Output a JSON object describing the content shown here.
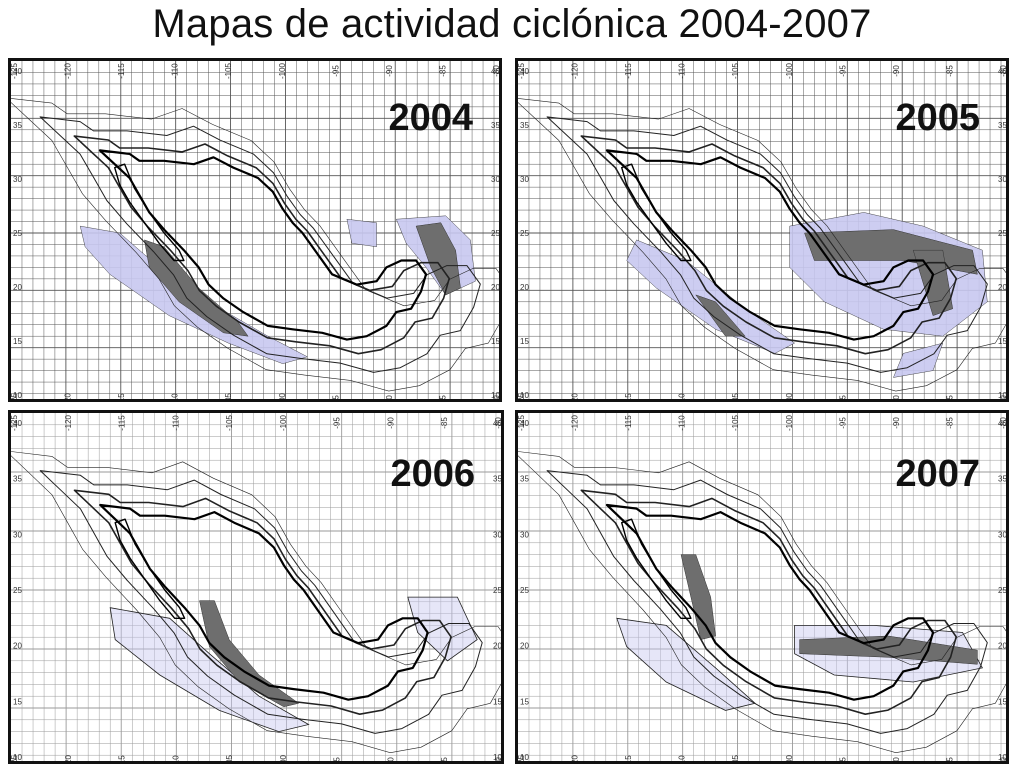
{
  "title": "Mapas de actividad ciclónica 2004-2007",
  "axes": {
    "lon_ticks": [
      "-125",
      "-120",
      "-115",
      "-110",
      "-105",
      "-100",
      "-95",
      "-90",
      "-85",
      "-80"
    ],
    "lat_ticks": [
      "40",
      "35",
      "30",
      "25",
      "20",
      "15",
      "10"
    ]
  },
  "colors": {
    "frame": "#111111",
    "grid_dark": "#555555",
    "grid_light": "#9a9a9a",
    "zone_fill": "#c8c8f0",
    "core_fill": "#6e6e6e"
  },
  "panels": [
    {
      "year": "2004",
      "grid_style": "dark"
    },
    {
      "year": "2005",
      "grid_style": "dark"
    },
    {
      "year": "2006",
      "grid_style": "light"
    },
    {
      "year": "2007",
      "grid_style": "light"
    }
  ]
}
